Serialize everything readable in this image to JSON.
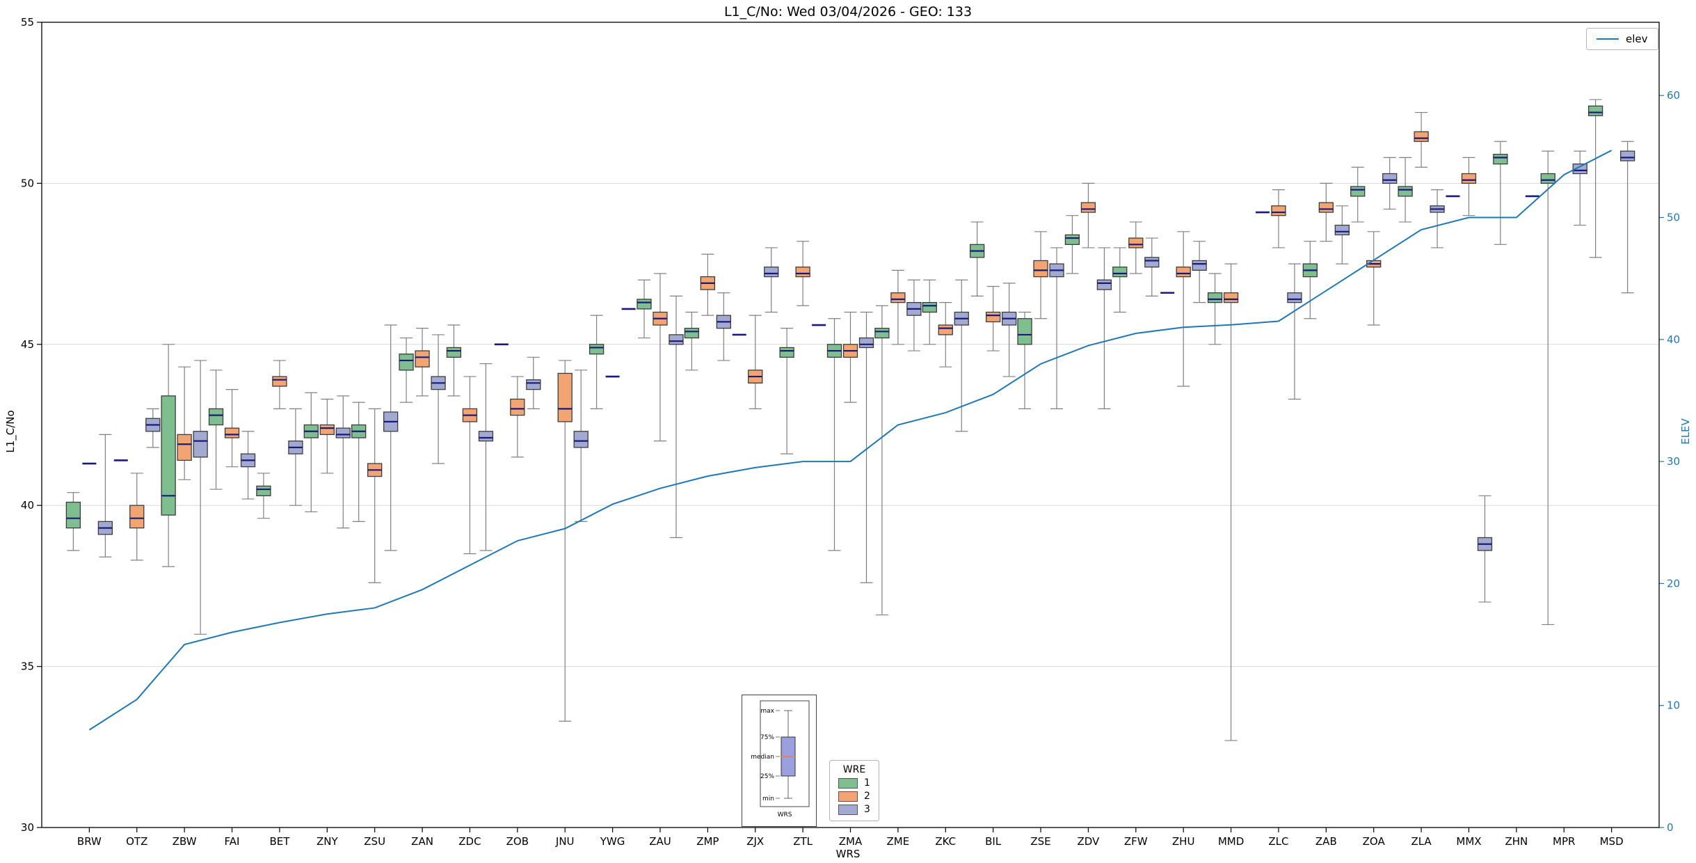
{
  "title": "L1_C/No: Wed 03/04/2026 - GEO: 133",
  "axes": {
    "ylabel_left": "L1_C/No",
    "ylabel_right": "ELEV",
    "xlabel": "WRS",
    "right_axis_color": "#1f77b4"
  },
  "legend_elev": {
    "label": "elev",
    "line_color": "#1f77b4"
  },
  "legend_wre": {
    "title": "WRE",
    "items": [
      {
        "label": "1",
        "color": "#7fbf8f"
      },
      {
        "label": "2",
        "color": "#f2a572"
      },
      {
        "label": "3",
        "color": "#a3aad1"
      }
    ]
  },
  "inset": {
    "labels": [
      "max",
      "75%",
      "median",
      "25%",
      "min"
    ],
    "xlabel": "WRS",
    "box_color": "#9aa0dd",
    "median_color": "#e0825a"
  },
  "chart_data": {
    "type": "boxplot+line",
    "title": "L1_C/No: Wed 03/04/2026 - GEO: 133",
    "xlabel": "WRS",
    "ylabel_left": "L1_C/No",
    "ylabel_right": "ELEV",
    "ylim_left": [
      30,
      55
    ],
    "ylim_right": [
      0,
      66
    ],
    "yticks_left": [
      30,
      35,
      40,
      45,
      50,
      55
    ],
    "yticks_right": [
      0,
      10,
      20,
      30,
      40,
      50,
      60
    ],
    "grid": true,
    "legend_position": "bottom-center",
    "series_colors": {
      "1": "#7fbf8f",
      "2": "#f2a572",
      "3": "#a3aad1"
    },
    "median_color": "#1a1a7e",
    "whisker_color": "#808080",
    "box_stats_order": [
      "min",
      "q1",
      "median",
      "q3",
      "max"
    ],
    "categories": [
      "BRW",
      "OTZ",
      "ZBW",
      "FAI",
      "BET",
      "ZNY",
      "ZSU",
      "ZAN",
      "ZDC",
      "ZOB",
      "JNU",
      "YWG",
      "ZAU",
      "ZMP",
      "ZJX",
      "ZTL",
      "ZMA",
      "ZME",
      "ZKC",
      "BIL",
      "ZSE",
      "ZDV",
      "ZFW",
      "ZHU",
      "MMD",
      "ZLC",
      "ZAB",
      "ZOA",
      "ZLA",
      "MMX",
      "ZHN",
      "MPR",
      "MSD"
    ],
    "boxes": {
      "BRW": {
        "1": [
          38.6,
          39.3,
          39.6,
          40.1,
          40.4
        ],
        "2": [
          41.3,
          41.3,
          41.3,
          41.3,
          41.3
        ],
        "3": [
          38.4,
          39.1,
          39.3,
          39.5,
          42.2
        ]
      },
      "OTZ": {
        "1": [
          41.4,
          41.4,
          41.4,
          41.4,
          41.4
        ],
        "2": [
          38.3,
          39.3,
          39.6,
          40.0,
          41.0
        ],
        "3": [
          41.8,
          42.3,
          42.5,
          42.7,
          43.0
        ]
      },
      "ZBW": {
        "1": [
          38.1,
          39.7,
          40.3,
          43.4,
          45.0
        ],
        "2": [
          40.8,
          41.4,
          41.9,
          42.2,
          44.3
        ],
        "3": [
          36.0,
          41.5,
          42.0,
          42.3,
          44.5
        ]
      },
      "FAI": {
        "1": [
          40.5,
          42.5,
          42.8,
          43.0,
          44.2
        ],
        "2": [
          41.2,
          42.1,
          42.2,
          42.4,
          43.6
        ],
        "3": [
          40.2,
          41.2,
          41.4,
          41.6,
          42.3
        ]
      },
      "BET": {
        "1": [
          39.6,
          40.3,
          40.5,
          40.6,
          41.0
        ],
        "2": [
          43.0,
          43.7,
          43.9,
          44.0,
          44.5
        ],
        "3": [
          40.0,
          41.6,
          41.8,
          42.0,
          43.0
        ]
      },
      "ZNY": {
        "1": [
          39.8,
          42.1,
          42.3,
          42.5,
          43.5
        ],
        "2": [
          41.0,
          42.2,
          42.4,
          42.5,
          43.3
        ],
        "3": [
          39.3,
          42.1,
          42.2,
          42.4,
          43.4
        ]
      },
      "ZSU": {
        "1": [
          39.5,
          42.1,
          42.3,
          42.5,
          43.2
        ],
        "2": [
          37.6,
          40.9,
          41.1,
          41.3,
          43.0
        ],
        "3": [
          38.6,
          42.3,
          42.6,
          42.9,
          45.6
        ]
      },
      "ZAN": {
        "1": [
          43.2,
          44.2,
          44.5,
          44.7,
          45.2
        ],
        "2": [
          43.4,
          44.3,
          44.6,
          44.8,
          45.5
        ],
        "3": [
          41.3,
          43.6,
          43.8,
          44.0,
          45.3
        ]
      },
      "ZDC": {
        "1": [
          43.4,
          44.6,
          44.8,
          44.9,
          45.6
        ],
        "2": [
          38.5,
          42.6,
          42.8,
          43.0,
          44.0
        ],
        "3": [
          38.6,
          42.0,
          42.1,
          42.3,
          44.4
        ]
      },
      "ZOB": {
        "1": [
          45.0,
          45.0,
          45.0,
          45.0,
          45.0
        ],
        "2": [
          41.5,
          42.8,
          43.0,
          43.3,
          44.0
        ],
        "3": [
          43.0,
          43.6,
          43.8,
          43.9,
          44.6
        ]
      },
      "JNU": {
        "1": null,
        "2": [
          33.3,
          42.6,
          43.0,
          44.1,
          44.5
        ],
        "3": [
          39.5,
          41.8,
          42.0,
          42.3,
          44.2
        ]
      },
      "YWG": {
        "1": [
          43.0,
          44.7,
          44.9,
          45.0,
          45.9
        ],
        "2": [
          44.0,
          44.0,
          44.0,
          44.0,
          44.0
        ],
        "3": [
          46.1,
          46.1,
          46.1,
          46.1,
          46.1
        ]
      },
      "ZAU": {
        "1": [
          45.2,
          46.1,
          46.3,
          46.4,
          47.0
        ],
        "2": [
          42.0,
          45.6,
          45.8,
          46.0,
          47.2
        ],
        "3": [
          39.0,
          45.0,
          45.1,
          45.3,
          46.5
        ]
      },
      "ZMP": {
        "1": [
          44.2,
          45.2,
          45.4,
          45.5,
          46.0
        ],
        "2": [
          45.9,
          46.7,
          46.9,
          47.1,
          47.8
        ],
        "3": [
          44.5,
          45.5,
          45.7,
          45.9,
          46.6
        ]
      },
      "ZJX": {
        "1": [
          45.3,
          45.3,
          45.3,
          45.3,
          45.3
        ],
        "2": [
          43.0,
          43.8,
          44.0,
          44.2,
          45.9
        ],
        "3": [
          46.0,
          47.1,
          47.2,
          47.4,
          48.0
        ]
      },
      "ZTL": {
        "1": [
          41.6,
          44.6,
          44.8,
          44.9,
          45.5
        ],
        "2": [
          46.2,
          47.1,
          47.2,
          47.4,
          48.2
        ],
        "3": [
          45.6,
          45.6,
          45.6,
          45.6,
          45.6
        ]
      },
      "ZMA": {
        "1": [
          38.6,
          44.6,
          44.8,
          45.0,
          45.8
        ],
        "2": [
          43.2,
          44.6,
          44.8,
          45.0,
          46.0
        ],
        "3": [
          37.6,
          44.9,
          45.0,
          45.2,
          46.0
        ]
      },
      "ZME": {
        "1": [
          36.6,
          45.2,
          45.4,
          45.5,
          46.2
        ],
        "2": [
          45.0,
          46.3,
          46.4,
          46.6,
          47.3
        ],
        "3": [
          44.8,
          45.9,
          46.1,
          46.3,
          47.0
        ]
      },
      "ZKC": {
        "1": [
          45.0,
          46.0,
          46.2,
          46.3,
          47.0
        ],
        "2": [
          44.3,
          45.3,
          45.5,
          45.6,
          46.3
        ],
        "3": [
          42.3,
          45.6,
          45.8,
          46.0,
          47.0
        ]
      },
      "BIL": {
        "1": [
          46.5,
          47.7,
          47.9,
          48.1,
          48.8
        ],
        "2": [
          44.8,
          45.7,
          45.9,
          46.0,
          46.8
        ],
        "3": [
          44.0,
          45.6,
          45.8,
          46.0,
          46.9
        ]
      },
      "ZSE": {
        "1": [
          43.0,
          45.0,
          45.3,
          45.8,
          46.0
        ],
        "2": [
          45.8,
          47.1,
          47.3,
          47.6,
          48.5
        ],
        "3": [
          43.0,
          47.1,
          47.3,
          47.5,
          48.0
        ]
      },
      "ZDV": {
        "1": [
          47.2,
          48.1,
          48.3,
          48.4,
          49.0
        ],
        "2": [
          48.0,
          49.1,
          49.2,
          49.4,
          50.0
        ],
        "3": [
          43.0,
          46.7,
          46.9,
          47.0,
          48.0
        ]
      },
      "ZFW": {
        "1": [
          46.0,
          47.1,
          47.2,
          47.4,
          48.0
        ],
        "2": [
          47.2,
          48.0,
          48.1,
          48.3,
          48.8
        ],
        "3": [
          46.5,
          47.4,
          47.6,
          47.7,
          48.3
        ]
      },
      "ZHU": {
        "1": [
          46.6,
          46.6,
          46.6,
          46.6,
          46.6
        ],
        "2": [
          43.7,
          47.1,
          47.2,
          47.4,
          48.5
        ],
        "3": [
          46.3,
          47.3,
          47.5,
          47.6,
          48.2
        ]
      },
      "MMD": {
        "1": [
          45.0,
          46.3,
          46.4,
          46.6,
          47.2
        ],
        "2": [
          32.7,
          46.3,
          46.4,
          46.6,
          47.5
        ],
        "3": null
      },
      "ZLC": {
        "1": [
          49.1,
          49.1,
          49.1,
          49.1,
          49.1
        ],
        "2": [
          48.0,
          49.0,
          49.1,
          49.3,
          49.8
        ],
        "3": [
          43.3,
          46.3,
          46.4,
          46.6,
          47.5
        ]
      },
      "ZAB": {
        "1": [
          45.8,
          47.1,
          47.3,
          47.5,
          48.2
        ],
        "2": [
          48.2,
          49.1,
          49.2,
          49.4,
          50.0
        ],
        "3": [
          47.5,
          48.4,
          48.5,
          48.7,
          49.3
        ]
      },
      "ZOA": {
        "1": [
          48.8,
          49.6,
          49.8,
          49.9,
          50.5
        ],
        "2": [
          45.6,
          47.4,
          47.5,
          47.6,
          48.5
        ],
        "3": [
          49.2,
          50.0,
          50.1,
          50.3,
          50.8
        ]
      },
      "ZLA": {
        "1": [
          48.8,
          49.6,
          49.8,
          49.9,
          50.8
        ],
        "2": [
          50.5,
          51.3,
          51.4,
          51.6,
          52.2
        ],
        "3": [
          48.0,
          49.1,
          49.2,
          49.3,
          49.8
        ]
      },
      "MMX": {
        "1": [
          49.6,
          49.6,
          49.6,
          49.6,
          49.6
        ],
        "2": [
          49.0,
          50.0,
          50.1,
          50.3,
          50.8
        ],
        "3": [
          37.0,
          38.6,
          38.8,
          39.0,
          40.3
        ]
      },
      "ZHN": {
        "1": [
          48.1,
          50.6,
          50.8,
          50.9,
          51.3
        ],
        "2": null,
        "3": [
          49.6,
          49.6,
          49.6,
          49.6,
          49.6
        ]
      },
      "MPR": {
        "1": [
          36.3,
          50.0,
          50.1,
          50.3,
          51.0
        ],
        "2": null,
        "3": [
          48.7,
          50.3,
          50.4,
          50.6,
          51.0
        ]
      },
      "MSD": {
        "1": [
          47.7,
          52.1,
          52.2,
          52.4,
          52.6
        ],
        "2": null,
        "3": [
          46.6,
          50.7,
          50.8,
          51.0,
          51.3
        ]
      }
    },
    "elev": {
      "name": "elev",
      "color": "#1f77b4",
      "axis": "right",
      "values": [
        8,
        10.5,
        15,
        16,
        16.8,
        17.5,
        18,
        19.5,
        21.5,
        23.5,
        24.5,
        26.5,
        27.8,
        28.8,
        29.5,
        30,
        30,
        33,
        34,
        35.5,
        38,
        39.5,
        40.5,
        41,
        41.2,
        41.5,
        44,
        46.5,
        49,
        50,
        50,
        53.5,
        55.5
      ]
    }
  }
}
